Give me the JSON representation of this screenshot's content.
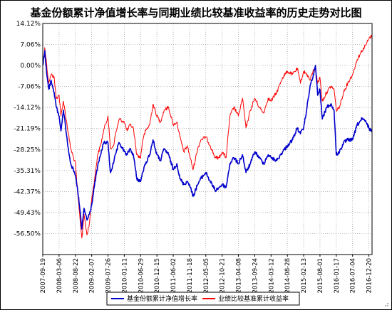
{
  "chart_data": {
    "type": "line",
    "title": "基金份额累计净值增长率与同期业绩比较基准收益率的历史走势对比图",
    "xlabel": "",
    "ylabel": "",
    "y_ticks": [
      "14.12%",
      "7.06%",
      "0.00%",
      "-7.06%",
      "-14.12%",
      "-21.19%",
      "-28.25%",
      "-35.31%",
      "-42.37%",
      "-49.43%",
      "-56.50%"
    ],
    "y_tick_values": [
      14.12,
      7.06,
      0.0,
      -7.06,
      -14.12,
      -21.19,
      -28.25,
      -35.31,
      -42.37,
      -49.43,
      -56.5
    ],
    "ylim": [
      -63.56,
      14.12
    ],
    "x_ticks": [
      "2007-09-19",
      "2008-03-06",
      "2008-08-22",
      "2009-02-07",
      "2009-07-26",
      "2010-01-11",
      "2010-06-29",
      "2010-12-15",
      "2011-06-02",
      "2011-11-18",
      "2012-05-05",
      "2012-10-21",
      "2013-04-08",
      "2013-09-24",
      "2014-03-12",
      "2014-08-28",
      "2015-02-13",
      "2015-08-01",
      "2016-01-17",
      "2016-07-04",
      "2016-12-20"
    ],
    "grid": true,
    "legend_position": "bottom",
    "series": [
      {
        "name": "基金份额累计净值增长率",
        "color": "#0000cc",
        "points": [
          [
            "2007-09-19",
            0
          ],
          [
            "2007-10-10",
            5
          ],
          [
            "2007-10-30",
            -3
          ],
          [
            "2007-11-20",
            -8
          ],
          [
            "2007-12-15",
            -5
          ],
          [
            "2008-01-15",
            -9
          ],
          [
            "2008-02-05",
            -14
          ],
          [
            "2008-03-06",
            -17
          ],
          [
            "2008-03-25",
            -22
          ],
          [
            "2008-04-20",
            -15
          ],
          [
            "2008-05-10",
            -20
          ],
          [
            "2008-06-10",
            -28
          ],
          [
            "2008-07-05",
            -33
          ],
          [
            "2008-08-22",
            -37
          ],
          [
            "2008-09-15",
            -42
          ],
          [
            "2008-10-10",
            -49
          ],
          [
            "2008-10-28",
            -55
          ],
          [
            "2008-11-20",
            -48
          ],
          [
            "2008-12-20",
            -52
          ],
          [
            "2009-01-15",
            -50
          ],
          [
            "2009-02-07",
            -47
          ],
          [
            "2009-03-10",
            -40
          ],
          [
            "2009-04-10",
            -34
          ],
          [
            "2009-05-10",
            -30
          ],
          [
            "2009-06-10",
            -26
          ],
          [
            "2009-07-26",
            -26
          ],
          [
            "2009-08-20",
            -36
          ],
          [
            "2009-09-20",
            -33
          ],
          [
            "2009-10-20",
            -29
          ],
          [
            "2009-11-20",
            -26
          ],
          [
            "2010-01-11",
            -29
          ],
          [
            "2010-02-10",
            -30
          ],
          [
            "2010-03-10",
            -28
          ],
          [
            "2010-04-15",
            -30
          ],
          [
            "2010-05-20",
            -38
          ],
          [
            "2010-06-29",
            -39
          ],
          [
            "2010-07-20",
            -36
          ],
          [
            "2010-08-20",
            -33
          ],
          [
            "2010-09-30",
            -30
          ],
          [
            "2010-11-05",
            -25
          ],
          [
            "2010-12-15",
            -30
          ],
          [
            "2011-01-20",
            -32
          ],
          [
            "2011-03-01",
            -28
          ],
          [
            "2011-04-15",
            -30
          ],
          [
            "2011-06-02",
            -35
          ],
          [
            "2011-07-10",
            -33
          ],
          [
            "2011-08-10",
            -38
          ],
          [
            "2011-09-20",
            -40
          ],
          [
            "2011-10-25",
            -39
          ],
          [
            "2011-11-18",
            -40
          ],
          [
            "2011-12-25",
            -44
          ],
          [
            "2012-02-10",
            -40
          ],
          [
            "2012-03-15",
            -38
          ],
          [
            "2012-05-05",
            -36
          ],
          [
            "2012-06-20",
            -39
          ],
          [
            "2012-08-10",
            -42
          ],
          [
            "2012-09-20",
            -41
          ],
          [
            "2012-10-21",
            -40
          ],
          [
            "2012-12-01",
            -41
          ],
          [
            "2013-01-10",
            -33
          ],
          [
            "2013-02-20",
            -31
          ],
          [
            "2013-04-08",
            -33
          ],
          [
            "2013-05-20",
            -30
          ],
          [
            "2013-06-25",
            -36
          ],
          [
            "2013-08-10",
            -33
          ],
          [
            "2013-09-24",
            -29
          ],
          [
            "2013-11-10",
            -31
          ],
          [
            "2013-12-25",
            -33
          ],
          [
            "2014-02-10",
            -30
          ],
          [
            "2014-03-12",
            -31
          ],
          [
            "2014-05-10",
            -32
          ],
          [
            "2014-07-10",
            -29
          ],
          [
            "2014-08-28",
            -27
          ],
          [
            "2014-10-20",
            -25
          ],
          [
            "2014-12-10",
            -21
          ],
          [
            "2015-01-10",
            -23
          ],
          [
            "2015-02-13",
            -21
          ],
          [
            "2015-03-20",
            -14
          ],
          [
            "2015-04-20",
            -7
          ],
          [
            "2015-05-20",
            -4
          ],
          [
            "2015-06-15",
            0
          ],
          [
            "2015-07-08",
            -10
          ],
          [
            "2015-08-01",
            -8
          ],
          [
            "2015-08-25",
            -18
          ],
          [
            "2015-10-10",
            -14
          ],
          [
            "2015-11-20",
            -13
          ],
          [
            "2015-12-25",
            -15
          ],
          [
            "2016-01-17",
            -30
          ],
          [
            "2016-02-20",
            -29
          ],
          [
            "2016-04-01",
            -26
          ],
          [
            "2016-05-15",
            -25
          ],
          [
            "2016-07-04",
            -25
          ],
          [
            "2016-08-20",
            -20
          ],
          [
            "2016-10-10",
            -18
          ],
          [
            "2016-11-20",
            -19
          ],
          [
            "2016-12-20",
            -21
          ],
          [
            "2017-01-20",
            -22
          ]
        ]
      },
      {
        "name": "业绩比较基准累计收益率",
        "color": "#ff0000",
        "points": [
          [
            "2007-09-19",
            0
          ],
          [
            "2007-10-10",
            6
          ],
          [
            "2007-10-30",
            0
          ],
          [
            "2007-11-20",
            -6
          ],
          [
            "2007-12-15",
            -3
          ],
          [
            "2008-01-15",
            -4
          ],
          [
            "2008-02-05",
            -11
          ],
          [
            "2008-03-06",
            -10
          ],
          [
            "2008-03-25",
            -17
          ],
          [
            "2008-04-20",
            -12
          ],
          [
            "2008-05-10",
            -16
          ],
          [
            "2008-06-10",
            -23
          ],
          [
            "2008-07-05",
            -28
          ],
          [
            "2008-08-22",
            -33
          ],
          [
            "2008-09-15",
            -43
          ],
          [
            "2008-10-10",
            -52
          ],
          [
            "2008-10-28",
            -58
          ],
          [
            "2008-11-20",
            -50
          ],
          [
            "2008-12-20",
            -57
          ],
          [
            "2009-01-15",
            -53
          ],
          [
            "2009-02-07",
            -45
          ],
          [
            "2009-03-10",
            -38
          ],
          [
            "2009-04-10",
            -30
          ],
          [
            "2009-05-10",
            -27
          ],
          [
            "2009-06-10",
            -22
          ],
          [
            "2009-07-26",
            -17
          ],
          [
            "2009-08-20",
            -28
          ],
          [
            "2009-09-20",
            -27
          ],
          [
            "2009-10-20",
            -22
          ],
          [
            "2009-11-20",
            -18
          ],
          [
            "2010-01-11",
            -19
          ],
          [
            "2010-02-10",
            -22
          ],
          [
            "2010-03-10",
            -20
          ],
          [
            "2010-04-15",
            -21
          ],
          [
            "2010-05-20",
            -30
          ],
          [
            "2010-06-29",
            -31
          ],
          [
            "2010-07-20",
            -25
          ],
          [
            "2010-08-20",
            -22
          ],
          [
            "2010-09-30",
            -20
          ],
          [
            "2010-11-05",
            -13
          ],
          [
            "2010-12-15",
            -17
          ],
          [
            "2011-01-20",
            -19
          ],
          [
            "2011-03-01",
            -15
          ],
          [
            "2011-04-15",
            -14
          ],
          [
            "2011-06-02",
            -20
          ],
          [
            "2011-07-10",
            -19
          ],
          [
            "2011-08-10",
            -24
          ],
          [
            "2011-09-20",
            -29
          ],
          [
            "2011-10-25",
            -27
          ],
          [
            "2011-11-18",
            -30
          ],
          [
            "2011-12-25",
            -35
          ],
          [
            "2012-02-10",
            -28
          ],
          [
            "2012-03-15",
            -25
          ],
          [
            "2012-05-05",
            -24
          ],
          [
            "2012-06-20",
            -27
          ],
          [
            "2012-08-10",
            -31
          ],
          [
            "2012-09-20",
            -31
          ],
          [
            "2012-10-21",
            -29
          ],
          [
            "2012-12-01",
            -31
          ],
          [
            "2013-01-10",
            -17
          ],
          [
            "2013-02-20",
            -14
          ],
          [
            "2013-04-08",
            -17
          ],
          [
            "2013-05-20",
            -11
          ],
          [
            "2013-06-25",
            -21
          ],
          [
            "2013-08-10",
            -15
          ],
          [
            "2013-09-24",
            -11
          ],
          [
            "2013-11-10",
            -14
          ],
          [
            "2013-12-25",
            -16
          ],
          [
            "2014-02-10",
            -11
          ],
          [
            "2014-03-12",
            -12
          ],
          [
            "2014-05-10",
            -9
          ],
          [
            "2014-07-10",
            -4
          ],
          [
            "2014-08-28",
            -2
          ],
          [
            "2014-10-20",
            -3
          ],
          [
            "2014-12-10",
            -1
          ],
          [
            "2015-01-10",
            -6
          ],
          [
            "2015-02-13",
            -2
          ],
          [
            "2015-03-20",
            -3
          ],
          [
            "2015-04-20",
            -5
          ],
          [
            "2015-05-20",
            -2
          ],
          [
            "2015-06-15",
            -1
          ],
          [
            "2015-07-08",
            -6
          ],
          [
            "2015-08-01",
            -4
          ],
          [
            "2015-08-25",
            -12
          ],
          [
            "2015-10-10",
            -9
          ],
          [
            "2015-11-20",
            -7
          ],
          [
            "2015-12-25",
            -8
          ],
          [
            "2016-01-17",
            -15
          ],
          [
            "2016-02-20",
            -14
          ],
          [
            "2016-04-01",
            -9
          ],
          [
            "2016-05-15",
            -6
          ],
          [
            "2016-07-04",
            -3
          ],
          [
            "2016-08-20",
            2
          ],
          [
            "2016-10-10",
            5
          ],
          [
            "2016-11-20",
            7
          ],
          [
            "2016-12-20",
            9
          ],
          [
            "2017-01-20",
            10
          ]
        ]
      }
    ]
  }
}
